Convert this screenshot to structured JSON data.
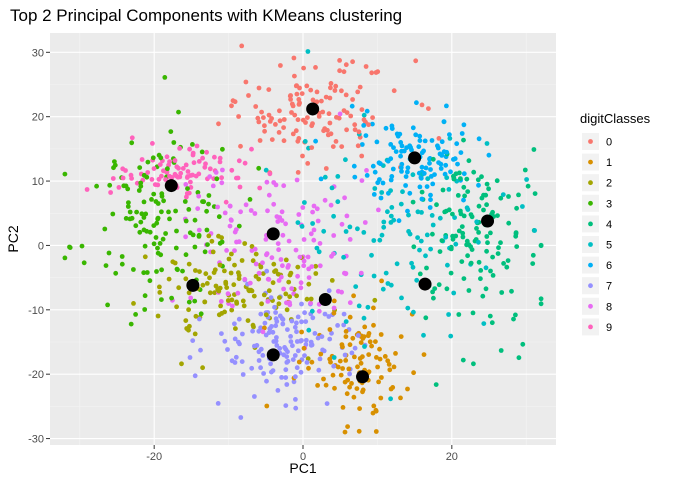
{
  "chart_data": {
    "type": "scatter",
    "title": "Top 2 Principal Components with KMeans clustering",
    "xlabel": "PC1",
    "ylabel": "PC2",
    "xlim": [
      -34,
      34
    ],
    "ylim": [
      -31,
      33
    ],
    "x_ticks": [
      -20,
      0,
      20
    ],
    "y_ticks": [
      -30,
      -20,
      -10,
      0,
      10,
      20,
      30
    ],
    "x_tick_labels": [
      "-20",
      "0",
      "20"
    ],
    "y_tick_labels": [
      "-30",
      "-20",
      "-10",
      "0",
      "10",
      "20",
      "30"
    ],
    "grid": true,
    "panel_background": "#ebebeb",
    "legend": {
      "title": "digitClasses",
      "position": "right",
      "entries": [
        "0",
        "1",
        "2",
        "3",
        "4",
        "5",
        "6",
        "7",
        "8",
        "9"
      ],
      "colors": [
        "#F8766D",
        "#D89000",
        "#A3A500",
        "#39B600",
        "#00BF7D",
        "#00BFC4",
        "#00B0F6",
        "#9590FF",
        "#E76BF3",
        "#FF62BC"
      ]
    },
    "series": [
      {
        "name": "0",
        "center": [
          1,
          21
        ],
        "spread": [
          6,
          4
        ],
        "n": 130
      },
      {
        "name": "1",
        "center": [
          7,
          -18
        ],
        "spread": [
          3.5,
          4.5
        ],
        "n": 110
      },
      {
        "name": "2",
        "center": [
          -10,
          -7
        ],
        "spread": [
          6,
          4
        ],
        "n": 130
      },
      {
        "name": "3",
        "center": [
          -20,
          4
        ],
        "spread": [
          5.5,
          7
        ],
        "n": 140
      },
      {
        "name": "4",
        "center": [
          23,
          2
        ],
        "spread": [
          4.5,
          7
        ],
        "n": 140
      },
      {
        "name": "5",
        "center": [
          13,
          2
        ],
        "spread": [
          8,
          8
        ],
        "n": 110
      },
      {
        "name": "6",
        "center": [
          15,
          13
        ],
        "spread": [
          4,
          3.5
        ],
        "n": 120
      },
      {
        "name": "7",
        "center": [
          -2,
          -15
        ],
        "spread": [
          5,
          4
        ],
        "n": 150
      },
      {
        "name": "8",
        "center": [
          -3,
          0
        ],
        "spread": [
          6,
          6
        ],
        "n": 140
      },
      {
        "name": "9",
        "center": [
          -17,
          11
        ],
        "spread": [
          4,
          2
        ],
        "n": 90
      }
    ],
    "cluster_centers": [
      {
        "x": 1.3,
        "y": 21.2
      },
      {
        "x": 15,
        "y": 13.6
      },
      {
        "x": -17.7,
        "y": 9.3
      },
      {
        "x": 24.8,
        "y": 3.8
      },
      {
        "x": -4,
        "y": 1.8
      },
      {
        "x": -14.8,
        "y": -6.2
      },
      {
        "x": 16.4,
        "y": -6
      },
      {
        "x": 3,
        "y": -8.4
      },
      {
        "x": -4,
        "y": -17
      },
      {
        "x": 8,
        "y": -20.4
      }
    ]
  }
}
